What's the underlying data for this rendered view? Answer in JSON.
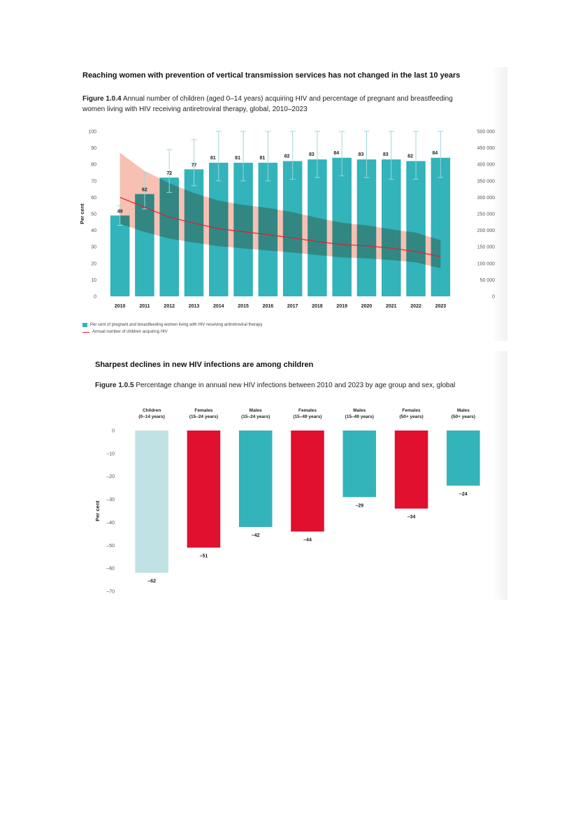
{
  "section1": {
    "heading": "Reaching women with prevention of vertical transmission services has not changed in the last 10 years",
    "figure_label": "Figure 1.0.4",
    "caption": "Annual number of children (aged 0–14 years) acquiring HIV and percentage of pregnant and breastfeeding women living with HIV receiving antiretroviral therapy, global, 2010–2023"
  },
  "section2": {
    "heading": "Sharpest declines in new HIV infections are among children",
    "figure_label": "Figure 1.0.5",
    "caption": "Percentage change in annual new HIV infections between 2010 and 2023 by age group and sex, global"
  },
  "chart_data": [
    {
      "type": "bar",
      "categories": [
        "2010",
        "2011",
        "2012",
        "2013",
        "2014",
        "2015",
        "2016",
        "2017",
        "2018",
        "2019",
        "2020",
        "2021",
        "2022",
        "2023"
      ],
      "series": [
        {
          "name": "Per cent of pregnant and breastfeeding women living with HIV receiving antiretroviral therapy",
          "values": [
            49,
            62,
            72,
            77,
            81,
            81,
            81,
            82,
            83,
            84,
            83,
            83,
            82,
            84
          ],
          "ci_low": [
            43,
            53,
            63,
            67,
            70,
            70,
            70,
            71,
            72,
            73,
            72,
            71,
            71,
            72
          ],
          "ci_high": [
            55,
            75,
            89,
            95,
            100,
            100,
            100,
            100,
            100,
            100,
            100,
            100,
            100,
            100
          ],
          "color": "#33b3ba"
        },
        {
          "name": "Annual number of children acquiring HIV",
          "type": "line",
          "axis": "right",
          "values": [
            300000,
            270000,
            240000,
            222000,
            205000,
            196000,
            187000,
            177000,
            166000,
            157000,
            153000,
            146000,
            136000,
            120000
          ],
          "band_low": [
            220000,
            195000,
            175000,
            163000,
            152000,
            145000,
            139000,
            133000,
            125000,
            118000,
            115000,
            110000,
            103000,
            85000
          ],
          "band_high": [
            435000,
            380000,
            343000,
            313000,
            290000,
            277000,
            268000,
            255000,
            238000,
            223000,
            215000,
            203000,
            193000,
            170000
          ],
          "color": "#e0202e",
          "band_color": "#f7c0b2"
        }
      ],
      "ylabel": "Per cent",
      "ylim": [
        0,
        100
      ],
      "yticks": [
        "0",
        "10",
        "20",
        "30",
        "40",
        "50",
        "60",
        "70",
        "80",
        "90",
        "100"
      ],
      "ylabel_right": "Number of new HIV infections among children",
      "ylim_right": [
        0,
        500000
      ],
      "yticks_right": [
        "0",
        "50 000",
        "100 000",
        "150 000",
        "200 000",
        "250 000",
        "300 000",
        "350 000",
        "400 000",
        "450 000",
        "500 000"
      ],
      "data_labels": [
        "49",
        "62",
        "72",
        "77",
        "81",
        "81",
        "81",
        "82",
        "83",
        "84",
        "83",
        "83",
        "82",
        "84"
      ],
      "legend": [
        {
          "label": "Per cent of pregnant and breastfeeding women living with HIV receiving antiretroviral therapy",
          "color": "#33b3ba"
        },
        {
          "label": "Annual number of children acquiring HIV",
          "color": "#e0202e"
        }
      ],
      "grid": false
    },
    {
      "type": "bar",
      "categories": [
        {
          "line1": "Children",
          "line2": "(0–14 years)"
        },
        {
          "line1": "Females",
          "line2": "(15–24 years)"
        },
        {
          "line1": "Males",
          "line2": "(15–24 years)"
        },
        {
          "line1": "Females",
          "line2": "(15–49 years)"
        },
        {
          "line1": "Males",
          "line2": "(15–49 years)"
        },
        {
          "line1": "Females",
          "line2": "(50+ years)"
        },
        {
          "line1": "Males",
          "line2": "(50+ years)"
        }
      ],
      "values": [
        -62,
        -51,
        -42,
        -44,
        -29,
        -34,
        -24
      ],
      "data_labels": [
        "–62",
        "–51",
        "–42",
        "–44",
        "–29",
        "–34",
        "–24"
      ],
      "colors": [
        "#c1e2e5",
        "#e0102e",
        "#33b3ba",
        "#e0102e",
        "#33b3ba",
        "#e0102e",
        "#33b3ba"
      ],
      "ylabel": "Per cent",
      "ylim": [
        -70,
        0
      ],
      "yticks": [
        "0",
        "–10",
        "–20",
        "–30",
        "–40",
        "–50",
        "–60",
        "–70"
      ],
      "grid": false
    }
  ]
}
